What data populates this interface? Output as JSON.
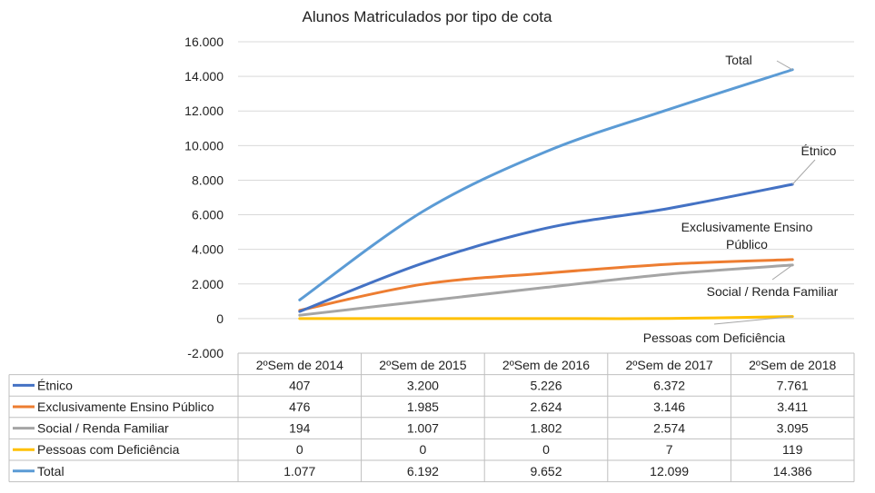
{
  "chart_data": {
    "type": "line",
    "title": "Alunos Matriculados por tipo de cota",
    "categories": [
      "2ºSem de 2014",
      "2ºSem de 2015",
      "2ºSem de 2016",
      "2ºSem de 2017",
      "2ºSem de 2018"
    ],
    "yticks": [
      "16.000",
      "14.000",
      "12.000",
      "10.000",
      "8.000",
      "6.000",
      "4.000",
      "2.000",
      "0",
      "-2.000"
    ],
    "ylim": [
      -2000,
      16000
    ],
    "grid": true,
    "legend_placement": "data-table",
    "series": [
      {
        "name": "Étnico",
        "color": "#4472C4",
        "values": [
          407,
          3200,
          5226,
          6372,
          7761
        ],
        "labels": [
          "407",
          "3.200",
          "5.226",
          "6.372",
          "7.761"
        ],
        "end_label": [
          "Étnico"
        ]
      },
      {
        "name": "Exclusivamente Ensino Público",
        "color": "#ED7D31",
        "values": [
          476,
          1985,
          2624,
          3146,
          3411
        ],
        "labels": [
          "476",
          "1.985",
          "2.624",
          "3.146",
          "3.411"
        ],
        "end_label": [
          "Exclusivamente Ensino",
          "Público"
        ]
      },
      {
        "name": "Social / Renda Familiar",
        "color": "#A5A5A5",
        "values": [
          194,
          1007,
          1802,
          2574,
          3095
        ],
        "labels": [
          "194",
          "1.007",
          "1.802",
          "2.574",
          "3.095"
        ],
        "end_label": [
          "Social / Renda Familiar"
        ]
      },
      {
        "name": "Pessoas com Deficiência",
        "color": "#FFC000",
        "values": [
          0,
          0,
          0,
          7,
          119
        ],
        "labels": [
          "0",
          "0",
          "0",
          "7",
          "119"
        ],
        "end_label": [
          "Pessoas com Deficiência"
        ]
      },
      {
        "name": "Total",
        "color": "#5B9BD5",
        "values": [
          1077,
          6192,
          9652,
          12099,
          14386
        ],
        "labels": [
          "1.077",
          "6.192",
          "9.652",
          "12.099",
          "14.386"
        ],
        "end_label": [
          "Total"
        ]
      }
    ]
  }
}
